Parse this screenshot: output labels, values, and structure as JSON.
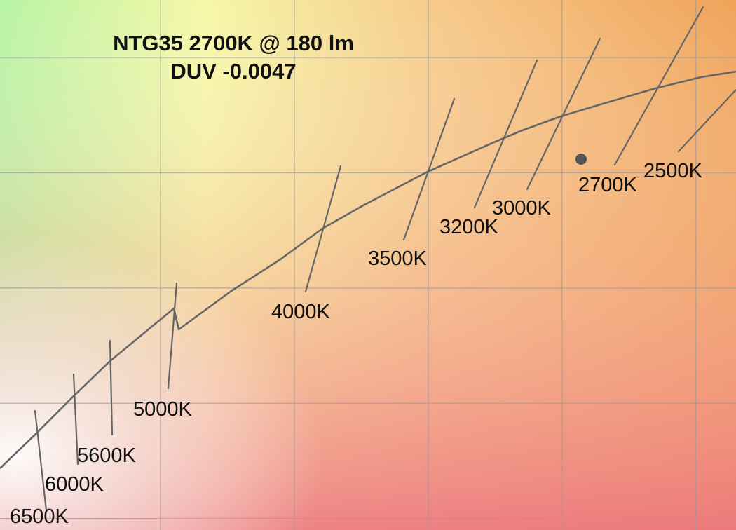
{
  "chart_data": {
    "type": "scatter",
    "title": "NTG35 2700K @ 180 lm",
    "subtitle": "DUV -0.0047",
    "xlabel": "",
    "ylabel": "",
    "grid": true,
    "background": "CIE 1976 u'v' chromaticity colors",
    "planckian_locus": [
      {
        "cct": 6500,
        "u": 0.1978,
        "v": 0.4683
      },
      {
        "cct": 6000,
        "u": 0.2009,
        "v": 0.4722
      },
      {
        "cct": 5600,
        "u": 0.2037,
        "v": 0.4756
      },
      {
        "cct": 5000,
        "u": 0.2083,
        "v": 0.4811
      },
      {
        "cct": 4000,
        "u": 0.2198,
        "v": 0.4922
      },
      {
        "cct": 3500,
        "u": 0.2275,
        "v": 0.4988
      },
      {
        "cct": 3200,
        "u": 0.2334,
        "v": 0.5032
      },
      {
        "cct": 3000,
        "u": 0.2378,
        "v": 0.5062
      },
      {
        "cct": 2700,
        "u": 0.2446,
        "v": 0.5102
      },
      {
        "cct": 2500,
        "u": 0.2497,
        "v": 0.5126
      }
    ],
    "isotherms": [
      {
        "label": "6500K",
        "cct": 6500
      },
      {
        "label": "6000K",
        "cct": 6000
      },
      {
        "label": "5600K",
        "cct": 5600
      },
      {
        "label": "5000K",
        "cct": 5000
      },
      {
        "label": "4000K",
        "cct": 4000
      },
      {
        "label": "3500K",
        "cct": 3500
      },
      {
        "label": "3200K",
        "cct": 3200
      },
      {
        "label": "3000K",
        "cct": 3000
      },
      {
        "label": "2700K",
        "cct": 2700
      },
      {
        "label": "2500K",
        "cct": 2500
      }
    ],
    "measured_point": {
      "name": "NTG35 2700K @ 180 lm",
      "u": 0.2408,
      "v": 0.5067,
      "duv": -0.0047
    },
    "colors": {
      "locus": "#666666",
      "point": "#555555",
      "grid": "#9a9a9a",
      "text": "#111111"
    }
  }
}
